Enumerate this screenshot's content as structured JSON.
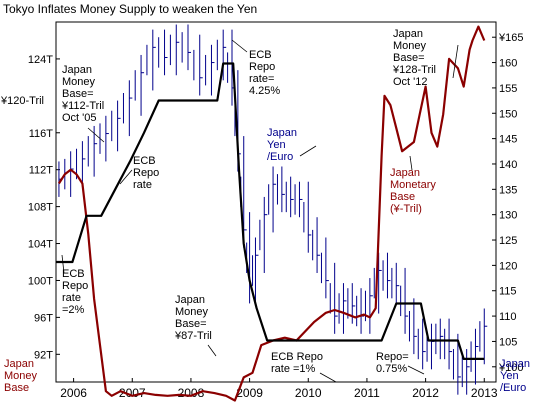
{
  "chart_data": {
    "type": "line",
    "title": "Tokyo Inflates Money Supply to weaken the Yen",
    "x_range": [
      2005.7,
      2013.2
    ],
    "left_axis": {
      "label": "¥120-Tril",
      "ticks": [
        "124T",
        "116T",
        "112T",
        "108T",
        "104T",
        "100T",
        "96T",
        "92T"
      ],
      "ylim": [
        89,
        128
      ]
    },
    "right_axis": {
      "ticks": [
        "¥165",
        "160",
        "155",
        "150",
        "145",
        "140",
        "135",
        "130",
        "125",
        "120",
        "115",
        "110",
        "105",
        "¥100"
      ],
      "ylim": [
        97,
        168
      ],
      "label_lines": [
        "Japan",
        "Yen",
        "/Euro"
      ]
    },
    "x_ticks": [
      "2006",
      "2007",
      "2008",
      "2009",
      "2010",
      "2011",
      "2012",
      "2013"
    ],
    "series": [
      {
        "name": "Japan Money Base (¥-Tril)",
        "axis": "left",
        "color": "#8b0000",
        "x": [
          2005.75,
          2005.85,
          2005.95,
          2006.05,
          2006.15,
          2006.25,
          2006.35,
          2006.45,
          2006.55,
          2006.65,
          2006.8,
          2007.0,
          2007.2,
          2007.4,
          2007.6,
          2007.8,
          2008.0,
          2008.2,
          2008.4,
          2008.6,
          2008.75,
          2008.9,
          2009.05,
          2009.2,
          2009.4,
          2009.6,
          2009.8,
          2009.95,
          2010.1,
          2010.3,
          2010.45,
          2010.6,
          2010.8,
          2010.95,
          2011.05,
          2011.15,
          2011.25,
          2011.3,
          2011.4,
          2011.5,
          2011.6,
          2011.7,
          2011.8,
          2011.9,
          2012.0,
          2012.1,
          2012.2,
          2012.3,
          2012.4,
          2012.55,
          2012.65,
          2012.75,
          2012.8,
          2012.9,
          2013.0
        ],
        "y": [
          110.5,
          111.5,
          112.0,
          111.5,
          110.5,
          105.0,
          98.0,
          93.0,
          88.0,
          87.5,
          88.0,
          87.5,
          87.8,
          87.6,
          87.5,
          87.6,
          87.5,
          88.0,
          87.8,
          87.5,
          87.0,
          89.5,
          90.0,
          93.0,
          93.5,
          93.8,
          93.5,
          94.5,
          95.5,
          96.5,
          96.8,
          96.5,
          96.0,
          96.3,
          96.0,
          97.0,
          113.5,
          120.0,
          119.0,
          116.5,
          114.0,
          114.5,
          115.0,
          118.0,
          121.0,
          116.0,
          114.5,
          118.0,
          124.0,
          123.0,
          121.0,
          125.0,
          126.0,
          127.5,
          126.0
        ]
      },
      {
        "name": "ECB Repo rate",
        "axis": "left",
        "color": "#000000",
        "x": [
          2005.7,
          2005.98,
          2006.22,
          2006.47,
          2006.72,
          2006.97,
          2007.2,
          2007.45,
          2008.45,
          2008.55,
          2008.72,
          2008.82,
          2008.9,
          2009.0,
          2009.12,
          2009.3,
          2011.25,
          2011.5,
          2011.92,
          2012.05,
          2012.55,
          2012.65,
          2013.0
        ],
        "y": [
          102.0,
          102.0,
          107.0,
          107.0,
          110.0,
          113.0,
          116.0,
          119.5,
          119.5,
          123.5,
          123.5,
          112.0,
          104.0,
          100.0,
          97.0,
          93.5,
          93.5,
          97.5,
          97.5,
          93.5,
          93.5,
          91.5,
          91.5
        ]
      },
      {
        "name": "Japan Yen /Euro",
        "axis": "right",
        "color": "#00008b",
        "x": [
          2005.75,
          2005.95,
          2006.15,
          2006.35,
          2006.55,
          2006.75,
          2006.95,
          2007.15,
          2007.35,
          2007.55,
          2007.75,
          2007.95,
          2008.15,
          2008.35,
          2008.55,
          2008.7,
          2008.8,
          2008.9,
          2009.0,
          2009.1,
          2009.25,
          2009.4,
          2009.55,
          2009.7,
          2009.85,
          2010.0,
          2010.15,
          2010.3,
          2010.45,
          2010.6,
          2010.75,
          2010.9,
          2011.05,
          2011.2,
          2011.35,
          2011.5,
          2011.65,
          2011.8,
          2011.95,
          2012.1,
          2012.25,
          2012.4,
          2012.55,
          2012.7,
          2012.85,
          2013.0
        ],
        "y": [
          137,
          139,
          141,
          144,
          146,
          149,
          153,
          158,
          163,
          161,
          164,
          162,
          157,
          160,
          163,
          155,
          142,
          127,
          116,
          122,
          130,
          136,
          134,
          133,
          133,
          126,
          122,
          117,
          110,
          113,
          112,
          110,
          114,
          119,
          117,
          116,
          110,
          106,
          103,
          105,
          106,
          103,
          98,
          100,
          104,
          108
        ]
      }
    ],
    "annotations": [
      {
        "lines": [
          "Japan",
          "Money",
          "Base=",
          "¥112-Tril",
          "Oct '05"
        ],
        "color": "#000000"
      },
      {
        "lines": [
          "ECB",
          "Repo",
          "rate=",
          "4.25%"
        ],
        "color": "#000000"
      },
      {
        "lines": [
          "Japan",
          "Money",
          "Base=",
          "¥128-Tril",
          "Oct '12"
        ],
        "color": "#000000"
      },
      {
        "lines": [
          "ECB",
          "Repo",
          "rate"
        ],
        "color": "#000000"
      },
      {
        "lines": [
          "Japan",
          "Yen",
          "/Euro"
        ],
        "color": "#00008b"
      },
      {
        "lines": [
          "Japan",
          "Monetary",
          "Base",
          "(¥-Tril)"
        ],
        "color": "#8b0000"
      },
      {
        "lines": [
          "ECB",
          "Repo",
          "rate",
          "=2%"
        ],
        "color": "#000000"
      },
      {
        "lines": [
          "Japan",
          "Money",
          "Base=",
          "¥87-Tril"
        ],
        "color": "#000000"
      },
      {
        "lines": [
          "ECB Repo",
          "rate =1%"
        ],
        "color": "#000000"
      },
      {
        "lines": [
          "Repo=",
          "0.75%"
        ],
        "color": "#000000"
      },
      {
        "lines": [
          "Japan",
          "Money",
          "Base"
        ],
        "color": "#8b0000"
      }
    ]
  }
}
